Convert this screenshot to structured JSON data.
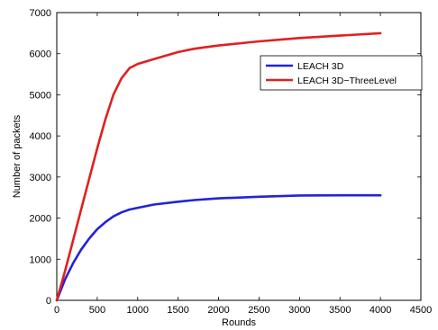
{
  "chart_data": {
    "type": "line",
    "xlabel": "Rounds",
    "ylabel": "Number of packets",
    "xlim": [
      0,
      4500
    ],
    "ylim": [
      0,
      7000
    ],
    "xticks": [
      0,
      500,
      1000,
      1500,
      2000,
      2500,
      3000,
      3500,
      4000,
      4500
    ],
    "yticks": [
      0,
      1000,
      2000,
      3000,
      4000,
      5000,
      6000,
      7000
    ],
    "grid": false,
    "legend_position": "top-right",
    "x": [
      0,
      100,
      200,
      300,
      400,
      500,
      600,
      700,
      800,
      900,
      1000,
      1200,
      1500,
      1700,
      2000,
      2500,
      3000,
      3500,
      4000
    ],
    "series": [
      {
        "name": "LEACH 3D",
        "color": "#2323d8",
        "values": [
          0,
          500,
          900,
          1230,
          1500,
          1730,
          1900,
          2040,
          2140,
          2210,
          2250,
          2330,
          2400,
          2440,
          2480,
          2520,
          2550,
          2555,
          2555
        ]
      },
      {
        "name": "LEACH 3D−ThreeLevel",
        "color": "#e02020",
        "values": [
          0,
          700,
          1450,
          2200,
          2950,
          3700,
          4400,
          5000,
          5400,
          5650,
          5750,
          5870,
          6040,
          6120,
          6200,
          6300,
          6380,
          6440,
          6500
        ]
      }
    ]
  }
}
